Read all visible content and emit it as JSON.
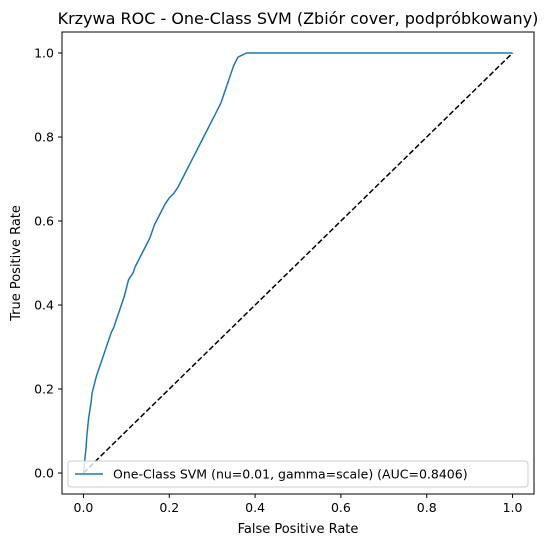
{
  "chart_data": {
    "type": "line",
    "title": "Krzywa ROC - One-Class SVM (Zbiór cover, podpróbkowany)",
    "xlabel": "False Positive Rate",
    "ylabel": "True Positive Rate",
    "xlim": [
      -0.05,
      1.05
    ],
    "ylim": [
      -0.05,
      1.05
    ],
    "xticks": [
      "0.0",
      "0.2",
      "0.4",
      "0.6",
      "0.8",
      "1.0"
    ],
    "yticks": [
      "0.0",
      "0.2",
      "0.4",
      "0.6",
      "0.8",
      "1.0"
    ],
    "grid": false,
    "legend_position": "lower-right",
    "series": [
      {
        "name": "One-Class SVM (nu=0.01, gamma=scale) (AUC=0.8406)",
        "color": "#1f77b4",
        "style": "solid",
        "x": [
          0.0,
          0.003,
          0.006,
          0.008,
          0.01,
          0.012,
          0.015,
          0.018,
          0.02,
          0.025,
          0.03,
          0.035,
          0.04,
          0.045,
          0.05,
          0.055,
          0.06,
          0.065,
          0.07,
          0.075,
          0.08,
          0.085,
          0.09,
          0.095,
          0.1,
          0.105,
          0.11,
          0.115,
          0.12,
          0.125,
          0.13,
          0.14,
          0.15,
          0.155,
          0.16,
          0.165,
          0.17,
          0.18,
          0.19,
          0.2,
          0.21,
          0.22,
          0.23,
          0.24,
          0.25,
          0.26,
          0.27,
          0.28,
          0.29,
          0.3,
          0.31,
          0.32,
          0.33,
          0.34,
          0.35,
          0.36,
          0.37,
          0.38,
          0.39,
          0.4,
          0.5,
          0.6,
          0.7,
          0.8,
          0.9,
          1.0
        ],
        "y": [
          0.0,
          0.03,
          0.06,
          0.09,
          0.11,
          0.13,
          0.15,
          0.17,
          0.19,
          0.21,
          0.23,
          0.245,
          0.26,
          0.275,
          0.29,
          0.305,
          0.32,
          0.335,
          0.345,
          0.36,
          0.375,
          0.39,
          0.405,
          0.42,
          0.44,
          0.46,
          0.468,
          0.475,
          0.49,
          0.5,
          0.51,
          0.53,
          0.55,
          0.56,
          0.575,
          0.59,
          0.6,
          0.62,
          0.64,
          0.655,
          0.665,
          0.68,
          0.7,
          0.72,
          0.74,
          0.76,
          0.78,
          0.8,
          0.82,
          0.84,
          0.86,
          0.88,
          0.91,
          0.94,
          0.97,
          0.99,
          0.995,
          1.0,
          1.0,
          1.0,
          1.0,
          1.0,
          1.0,
          1.0,
          1.0,
          1.0
        ]
      },
      {
        "name": "",
        "color": "#000000",
        "style": "dashed",
        "x": [
          0.0,
          1.0
        ],
        "y": [
          0.0,
          1.0
        ]
      }
    ]
  }
}
